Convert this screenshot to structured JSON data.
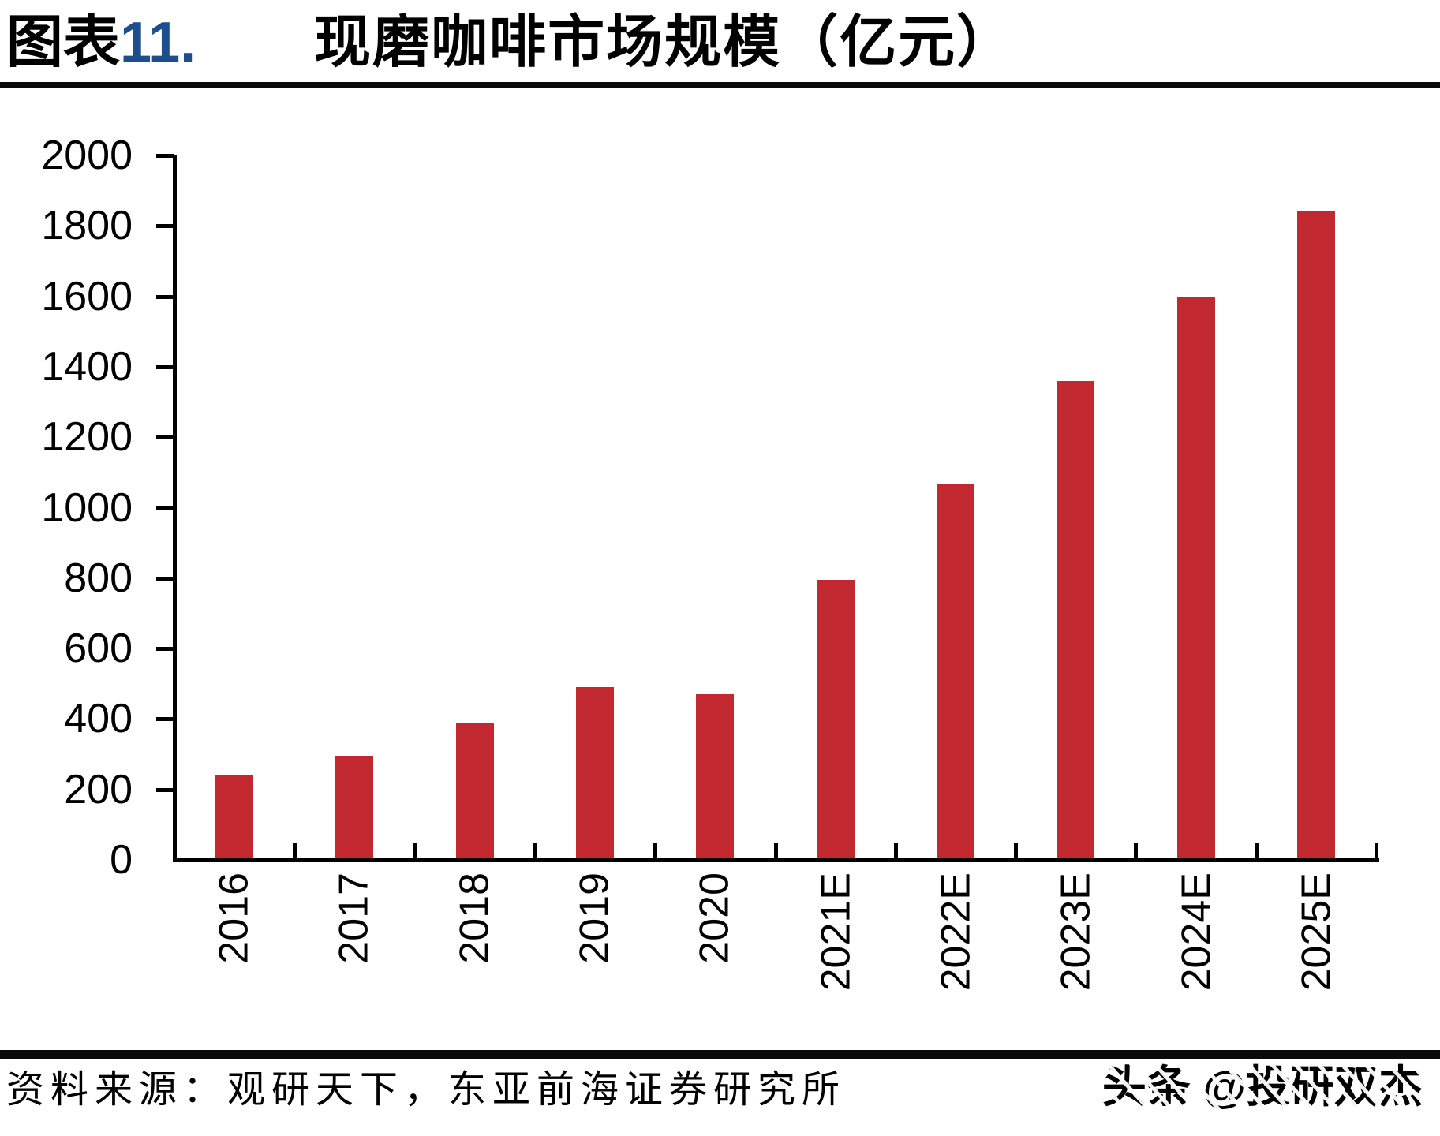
{
  "header": {
    "figure_label_prefix": "图表",
    "figure_number": "11.",
    "figure_number_color": "#1F4E8F",
    "title": "现磨咖啡市场规模（亿元）"
  },
  "chart_data": {
    "type": "bar",
    "title": "现磨咖啡市场规模（亿元）",
    "unit": "亿元",
    "categories": [
      "2016",
      "2017",
      "2018",
      "2019",
      "2020",
      "2021E",
      "2022E",
      "2023E",
      "2024E",
      "2025E"
    ],
    "values": [
      240,
      295,
      390,
      490,
      470,
      795,
      1065,
      1360,
      1600,
      1840
    ],
    "ylim": [
      0,
      2000
    ],
    "ytick_step": 200,
    "ytick_labels": [
      "0",
      "200",
      "400",
      "600",
      "800",
      "1000",
      "1200",
      "1400",
      "1600",
      "1800",
      "2000"
    ],
    "bar_color": "#C2282F",
    "axis_color": "#000000",
    "grid": false,
    "legend_position": "none",
    "xlabel_rotation_deg": -90
  },
  "footer": {
    "source_text": "资料来源：观研天下，东亚前海证券研究所",
    "watermark": "头条 @投研双杰"
  }
}
